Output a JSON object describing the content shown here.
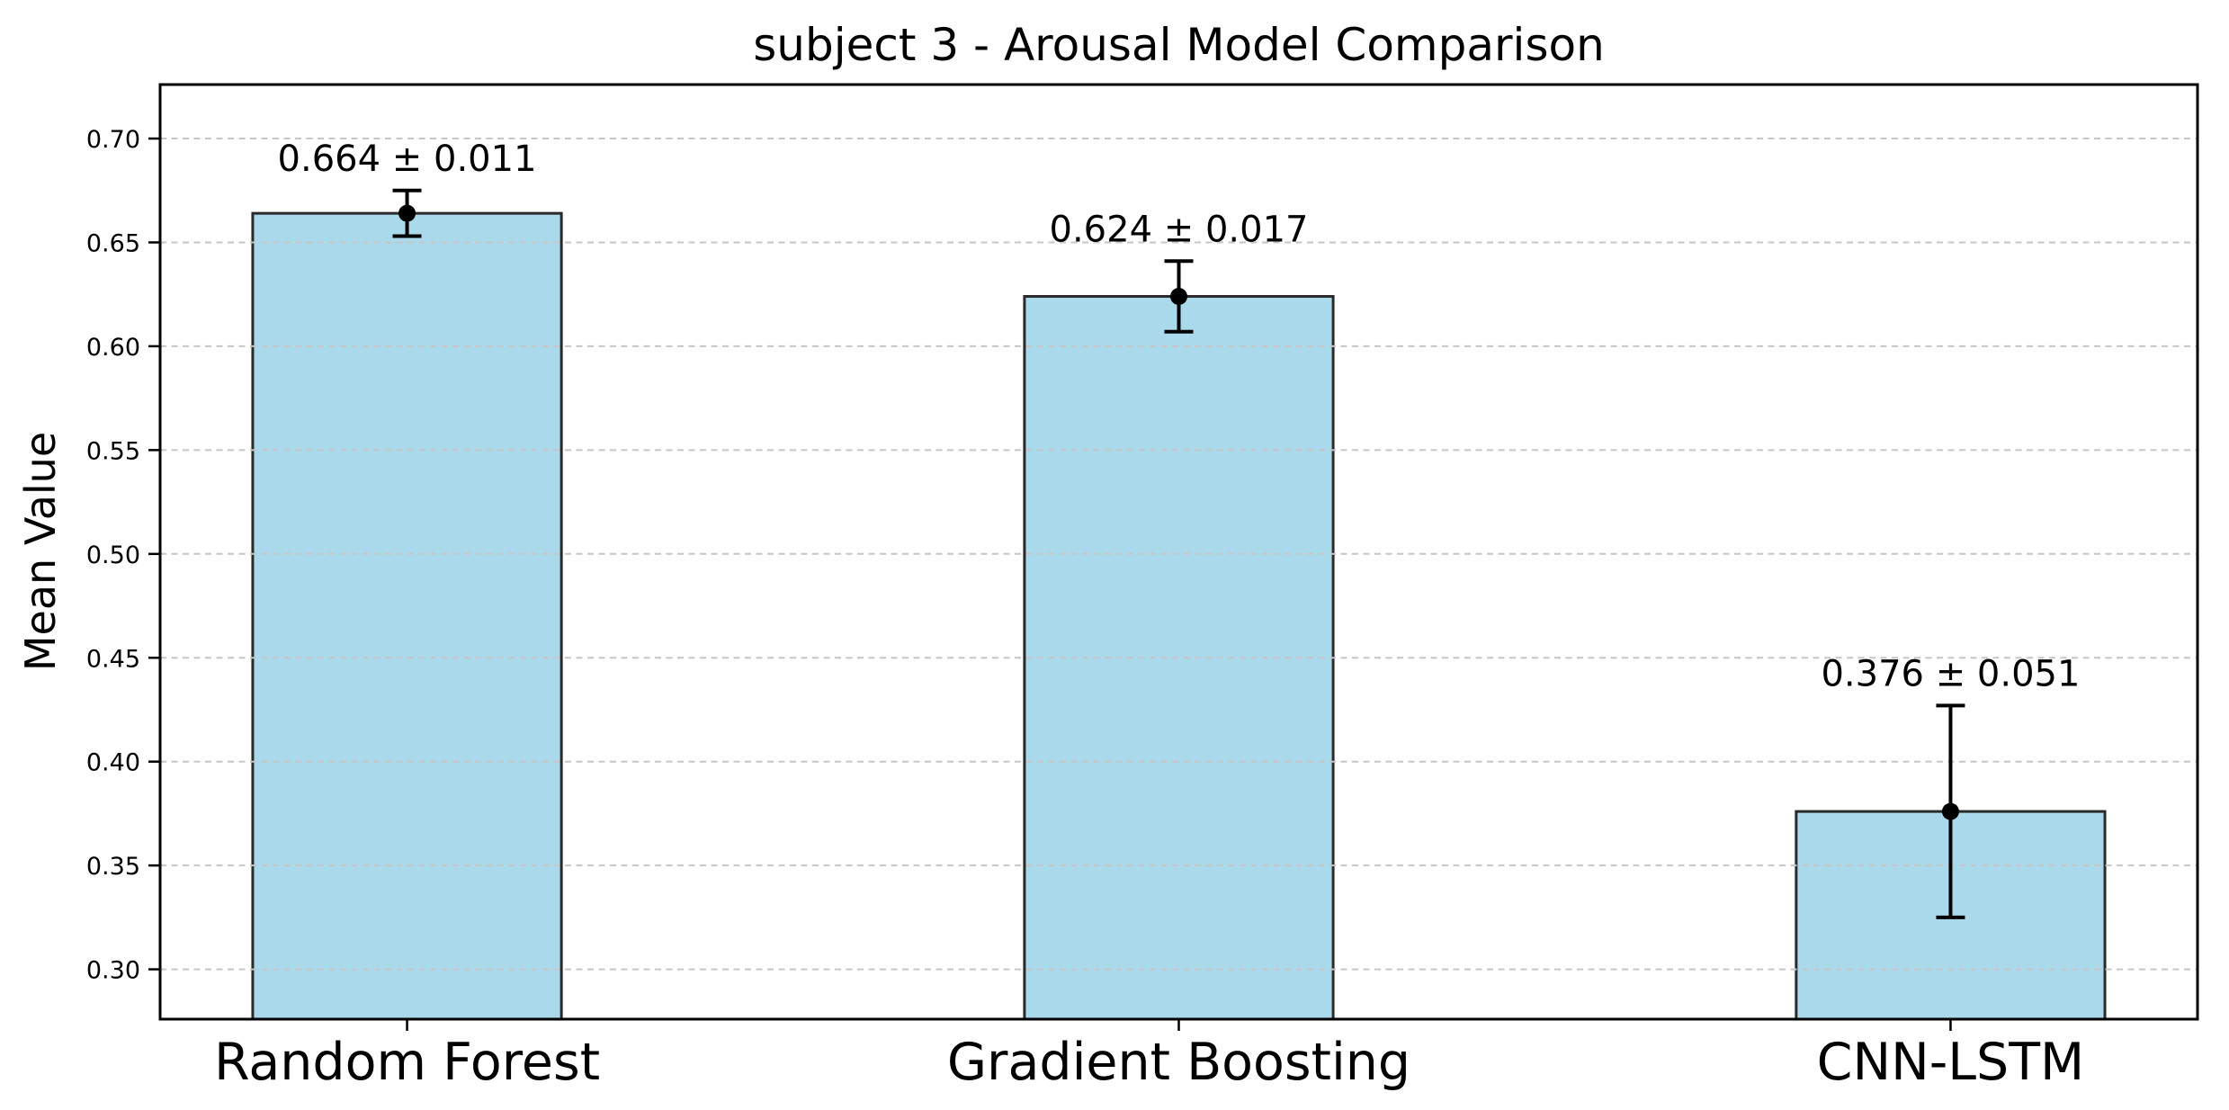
{
  "chart_data": {
    "type": "bar",
    "title": "subject 3 - Arousal Model Comparison",
    "xlabel": "",
    "ylabel": "Mean Value",
    "categories": [
      "Random Forest",
      "Gradient Boosting",
      "CNN-LSTM"
    ],
    "series": [
      {
        "name": "Mean Value",
        "values": [
          0.664,
          0.624,
          0.376
        ],
        "errors": [
          0.011,
          0.017,
          0.051
        ]
      }
    ],
    "value_labels": [
      "0.664 ± 0.011",
      "0.624 ± 0.017",
      "0.376 ± 0.051"
    ],
    "ylim": [
      0.276,
      0.726
    ],
    "yticks": [
      0.3,
      0.35,
      0.4,
      0.45,
      0.5,
      0.55,
      0.6,
      0.65,
      0.7
    ],
    "ytick_labels": [
      "0.30",
      "0.35",
      "0.40",
      "0.45",
      "0.50",
      "0.55",
      "0.60",
      "0.65",
      "0.70"
    ],
    "grid": {
      "horizontal": true,
      "style": "dashed",
      "on": true
    },
    "legend": null,
    "colors": {
      "bar_fill": "#a9d9ea",
      "bar_edge": "#2a2a2a",
      "error_bar": "#000000",
      "grid_line": "#c6c6c6",
      "spine": "#000000",
      "text": "#000000",
      "background": "#ffffff"
    }
  }
}
